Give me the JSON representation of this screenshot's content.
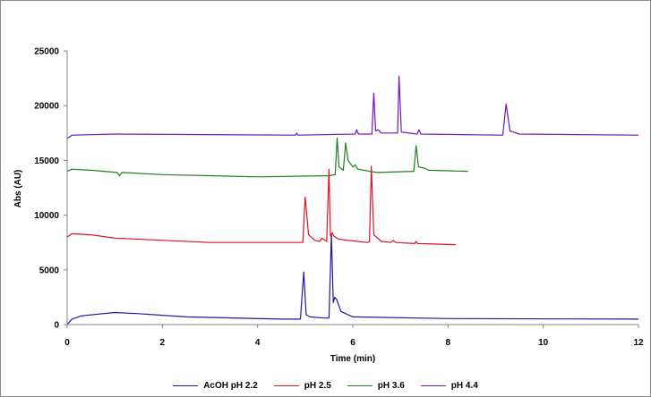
{
  "chart_data": {
    "type": "line",
    "title": "",
    "xlabel": "Time (min)",
    "ylabel": "Abs (AU)",
    "xlim": [
      0,
      12
    ],
    "ylim": [
      0,
      25000
    ],
    "xticks": [
      "0",
      "2",
      "4",
      "6",
      "8",
      "10",
      "12"
    ],
    "yticks": [
      "0",
      "5000",
      "10000",
      "15000",
      "20000",
      "25000"
    ],
    "grid": false,
    "legend_position": "bottom",
    "series": [
      {
        "name": "AcOH pH 2.2",
        "color": "#2b12a6",
        "x": [
          0,
          0.1,
          0.3,
          1.0,
          1.5,
          2.5,
          4.5,
          4.9,
          4.97,
          5.02,
          5.1,
          5.4,
          5.5,
          5.55,
          5.59,
          5.62,
          5.66,
          5.75,
          6.0,
          8.0,
          12.0
        ],
        "y": [
          0,
          500,
          800,
          1100,
          1000,
          700,
          500,
          500,
          4800,
          900,
          700,
          600,
          600,
          8200,
          2000,
          2500,
          2300,
          1200,
          700,
          550,
          500
        ]
      },
      {
        "name": "pH 2.5",
        "color": "#e0102a",
        "x": [
          0,
          0.1,
          0.5,
          1.0,
          3.0,
          4.9,
          4.95,
          5.0,
          5.07,
          5.2,
          5.3,
          5.35,
          5.45,
          5.5,
          5.53,
          5.57,
          5.6,
          5.7,
          6.3,
          6.35,
          6.39,
          6.44,
          6.6,
          6.8,
          6.85,
          6.9,
          7.3,
          7.33,
          7.36,
          8.16
        ],
        "y": [
          8000,
          8300,
          8200,
          7900,
          7500,
          7500,
          7500,
          11650,
          8200,
          7700,
          7600,
          7900,
          7600,
          14200,
          8100,
          8400,
          8100,
          7800,
          7500,
          7600,
          14450,
          8200,
          7600,
          7500,
          7700,
          7500,
          7400,
          7600,
          7400,
          7300
        ]
      },
      {
        "name": "pH 3.6",
        "color": "#1f7f1f",
        "x": [
          0,
          0.1,
          0.5,
          1.05,
          1.1,
          1.15,
          2.0,
          4.0,
          5.5,
          5.63,
          5.67,
          5.71,
          5.8,
          5.85,
          5.9,
          6.0,
          6.05,
          6.1,
          6.5,
          7.28,
          7.33,
          7.38,
          7.5,
          7.6,
          8.42
        ],
        "y": [
          14000,
          14200,
          14100,
          13900,
          13600,
          13900,
          13700,
          13500,
          13600,
          13700,
          17050,
          14400,
          14100,
          16600,
          15000,
          14400,
          14600,
          14200,
          13900,
          14000,
          16350,
          14400,
          14300,
          14100,
          14000
        ]
      },
      {
        "name": "pH 4.4",
        "color": "#7014c4",
        "x": [
          0,
          0.1,
          1.0,
          4.8,
          4.82,
          4.85,
          6.05,
          6.08,
          6.12,
          6.4,
          6.44,
          6.48,
          6.53,
          6.6,
          6.94,
          6.97,
          7.02,
          7.35,
          7.39,
          7.43,
          9.15,
          9.22,
          9.3,
          9.5,
          12.0
        ],
        "y": [
          17000,
          17300,
          17400,
          17300,
          17500,
          17300,
          17400,
          17800,
          17400,
          17400,
          21150,
          17700,
          17800,
          17500,
          17500,
          22700,
          17600,
          17400,
          17800,
          17400,
          17300,
          20150,
          17700,
          17400,
          17300
        ]
      }
    ]
  }
}
